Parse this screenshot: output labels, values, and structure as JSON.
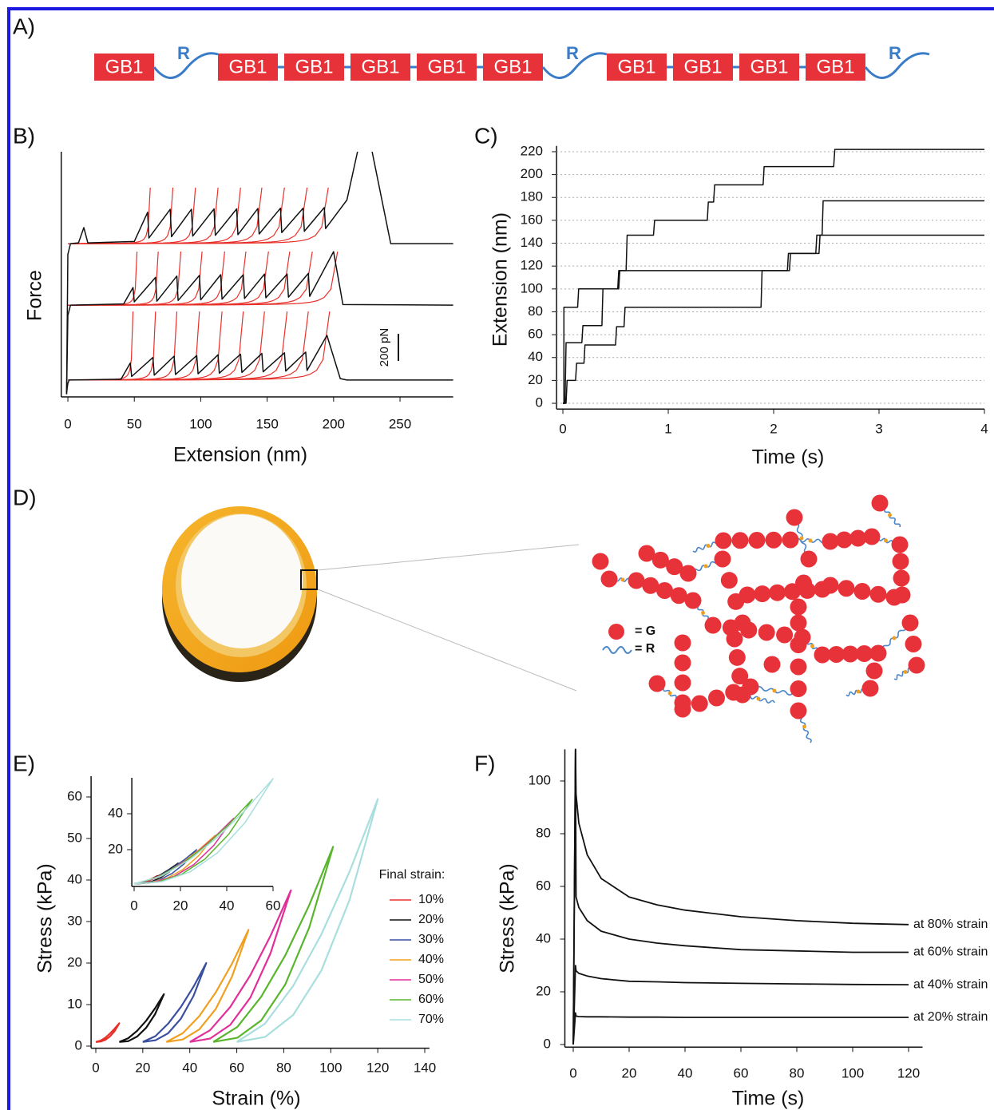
{
  "panel_labels": [
    "A)",
    "B)",
    "C)",
    "D)",
    "E)",
    "F)"
  ],
  "construct": {
    "modules": [
      "GB1",
      "R",
      "GB1",
      "GB1",
      "GB1",
      "GB1",
      "GB1",
      "R",
      "GB1",
      "GB1",
      "GB1",
      "GB1",
      "R"
    ]
  },
  "network_legend": [
    "= G",
    "= R"
  ],
  "chart_data": [
    {
      "type": "line",
      "xlabel": "Extension (nm)",
      "ylabel": "Force",
      "xlim": [
        -5,
        290
      ],
      "xticks": [
        0,
        50,
        100,
        150,
        200,
        250
      ],
      "ylim": [
        0,
        1806
      ],
      "scale_bar": {
        "value": 200,
        "label": "200 pN"
      },
      "series": [
        {
          "color": "#111111",
          "x": [
            -1,
            0,
            1,
            40,
            47,
            48,
            64,
            65,
            80,
            81,
            97,
            98,
            113,
            114,
            130,
            131,
            146,
            147,
            163,
            164,
            179,
            180,
            195,
            205,
            210,
            290
          ],
          "values": [
            30,
            100,
            124,
            130,
            250,
            150,
            290,
            160,
            300,
            165,
            305,
            170,
            310,
            175,
            315,
            180,
            320,
            185,
            325,
            190,
            330,
            195,
            453,
            135,
            124,
            124
          ],
          "fits": {
            "color": "#e8302a",
            "ends": [
              49,
              66,
              82,
              99,
              116,
              132,
              148,
              165,
              181,
              197
            ],
            "end_force": 629
          }
        },
        {
          "color": "#111111",
          "x": [
            -1,
            0,
            2,
            42,
            49,
            50,
            66,
            67,
            82,
            83,
            99,
            100,
            115,
            116,
            132,
            133,
            148,
            149,
            165,
            166,
            181,
            182,
            200,
            207,
            290
          ],
          "values": [
            20,
            600,
            676,
            685,
            806,
            700,
            880,
            705,
            890,
            710,
            895,
            715,
            900,
            720,
            900,
            725,
            905,
            730,
            905,
            735,
            910,
            740,
            1070,
            680,
            676
          ],
          "fits": {
            "color": "#e8302a",
            "ends": [
              52,
              68,
              85,
              101,
              118,
              134,
              151,
              167,
              184,
              203
            ],
            "end_force": 1070
          }
        },
        {
          "color": "#111111",
          "x": [
            -1,
            0,
            2,
            8,
            12,
            15,
            50,
            60,
            61,
            77,
            78,
            93,
            94,
            110,
            111,
            127,
            128,
            143,
            144,
            160,
            161,
            177,
            178,
            193,
            194,
            210,
            218,
            223,
            229,
            243,
            290
          ],
          "values": [
            20,
            1050,
            1129,
            1135,
            1247,
            1135,
            1145,
            1360,
            1170,
            1382,
            1180,
            1382,
            1185,
            1385,
            1190,
            1385,
            1195,
            1388,
            1200,
            1390,
            1210,
            1390,
            1220,
            1395,
            1240,
            1450,
            1806,
            null,
            1806,
            1129,
            1129
          ],
          "fits": {
            "color": "#e8302a",
            "ends": [
              62,
              79,
              96,
              113,
              130,
              146,
              163,
              180,
              196
            ],
            "end_force": 1541
          }
        }
      ]
    },
    {
      "type": "line",
      "xlabel": "Time (s)",
      "ylabel": "Extension (nm)",
      "grid": true,
      "xlim": [
        -0.06,
        4
      ],
      "xticks": [
        0,
        1,
        2,
        3,
        4
      ],
      "ylim": [
        -5,
        225
      ],
      "yticks": [
        0,
        20,
        40,
        60,
        80,
        100,
        120,
        140,
        160,
        180,
        200,
        220
      ],
      "series": [
        {
          "color": "#111111",
          "x": [
            0,
            0.01,
            0.01,
            0.14,
            0.15,
            0.52,
            0.53,
            0.6,
            0.61,
            0.86,
            0.87,
            1.37,
            1.38,
            1.43,
            1.44,
            1.9,
            1.91,
            2.57,
            2.58,
            4
          ],
          "values": [
            0,
            0,
            84,
            84,
            100,
            100,
            116,
            116,
            147,
            147,
            160,
            160,
            176,
            176,
            191,
            191,
            207,
            207,
            222,
            222
          ]
        },
        {
          "color": "#111111",
          "x": [
            0,
            0.02,
            0.03,
            0.18,
            0.19,
            0.37,
            0.38,
            0.53,
            0.54,
            2.13,
            2.14,
            2.4,
            2.41,
            2.46,
            2.47,
            4
          ],
          "values": [
            0,
            0,
            53,
            53,
            68,
            68,
            100,
            100,
            116,
            116,
            131,
            131,
            147,
            147,
            177,
            177
          ]
        },
        {
          "color": "#111111",
          "x": [
            0,
            0.03,
            0.04,
            0.12,
            0.13,
            0.2,
            0.21,
            0.5,
            0.51,
            0.58,
            0.59,
            1.88,
            1.89,
            2.15,
            2.16,
            2.43,
            2.44,
            4
          ],
          "values": [
            0,
            0,
            20,
            20,
            35,
            35,
            51,
            51,
            67,
            67,
            84,
            84,
            116,
            116,
            131,
            131,
            147,
            147
          ]
        }
      ]
    },
    {
      "type": "line",
      "xlabel": "Strain (%)",
      "ylabel": "Stress (kPa)",
      "legend_title": "Final strain:",
      "xlim": [
        -2,
        142
      ],
      "xticks": [
        0,
        20,
        40,
        60,
        80,
        100,
        120,
        140
      ],
      "ylim": [
        -0.5,
        65
      ],
      "yticks": [
        0,
        10,
        20,
        30,
        40,
        50,
        60
      ],
      "series": [
        {
          "name": "10%",
          "color": "#e8302a",
          "x": [
            0,
            2,
            4,
            6,
            8,
            10,
            8,
            6,
            4,
            2,
            0
          ],
          "values": [
            1,
            1.3,
            2,
            3,
            4.2,
            5.5,
            3.6,
            2.3,
            1.5,
            1.1,
            1
          ]
        },
        {
          "name": "20%",
          "color": "#111111",
          "x": [
            10,
            13.8,
            17.6,
            21.4,
            25.2,
            29,
            25.2,
            21.4,
            17.6,
            13.8,
            10
          ],
          "values": [
            1,
            1.9,
            3.7,
            6.1,
            9.1,
            12.5,
            7.7,
            4.4,
            2.3,
            1.2,
            1
          ]
        },
        {
          "name": "30%",
          "color": "#3a4fa0",
          "x": [
            20,
            25.4,
            30.8,
            36.2,
            41.6,
            47,
            41.6,
            36.2,
            30.8,
            25.4,
            20
          ],
          "values": [
            1,
            2.4,
            5.4,
            9.4,
            14.3,
            20,
            12.1,
            6.6,
            3.1,
            1.4,
            1
          ]
        },
        {
          "name": "40%",
          "color": "#f0a020",
          "x": [
            30,
            37,
            44,
            51,
            58,
            65,
            58,
            51,
            44,
            37,
            30
          ],
          "values": [
            1,
            3.1,
            7.2,
            12.9,
            19.9,
            28,
            16.8,
            8.9,
            4,
            1.6,
            1
          ]
        },
        {
          "name": "50%",
          "color": "#e0309a",
          "x": [
            40,
            48.6,
            57.2,
            65.8,
            74.4,
            83,
            74.4,
            65.8,
            57.2,
            48.6,
            40
          ],
          "values": [
            1,
            3.8,
            9.4,
            17.1,
            26.6,
            37.5,
            22.4,
            11.7,
            5.1,
            1.8,
            1
          ]
        },
        {
          "name": "60%",
          "color": "#5ab52e",
          "x": [
            50,
            60.2,
            70.4,
            80.6,
            90.8,
            101,
            90.8,
            80.6,
            70.4,
            60.2,
            50
          ],
          "values": [
            1,
            4.6,
            11.9,
            21.8,
            33.9,
            48,
            28.5,
            14.8,
            6.2,
            2,
            1
          ]
        },
        {
          "name": "70%",
          "color": "#a8dedd",
          "x": [
            60,
            72,
            84,
            96,
            108,
            120,
            108,
            96,
            84,
            72,
            60
          ],
          "values": [
            1,
            5.4,
            14.5,
            26.9,
            42,
            59.5,
            35.2,
            18.2,
            7.5,
            2.2,
            1
          ]
        }
      ]
    },
    {
      "type": "line",
      "xlim": [
        -1,
        60
      ],
      "xticks": [
        0,
        20,
        40,
        60
      ],
      "ylim": [
        -0.5,
        60
      ],
      "yticks": [
        20,
        40
      ],
      "series": [
        {
          "color": "#e8302a",
          "x": [
            0,
            2,
            4,
            6,
            8,
            10,
            8,
            6,
            4,
            2,
            0
          ],
          "values": [
            1,
            1.3,
            2,
            3,
            4.2,
            5.5,
            3.6,
            2.3,
            1.5,
            1.1,
            1
          ]
        },
        {
          "color": "#111111",
          "x": [
            0,
            3.8,
            7.6,
            11.4,
            15.2,
            19,
            15.2,
            11.4,
            7.6,
            3.8,
            0
          ],
          "values": [
            1,
            1.9,
            3.7,
            6.1,
            9.1,
            12.5,
            7.7,
            4.4,
            2.3,
            1.2,
            1
          ]
        },
        {
          "color": "#3a4fa0",
          "x": [
            0,
            5.4,
            10.8,
            16.2,
            21.6,
            27,
            21.6,
            16.2,
            10.8,
            5.4,
            0
          ],
          "values": [
            1,
            2.4,
            5.4,
            9.4,
            14.3,
            20,
            12.1,
            6.6,
            3.1,
            1.4,
            1
          ]
        },
        {
          "color": "#f0a020",
          "x": [
            0,
            7,
            14,
            21,
            28,
            35,
            28,
            21,
            14,
            7,
            0
          ],
          "values": [
            1,
            3.1,
            7.2,
            12.9,
            19.9,
            28,
            16.8,
            8.9,
            4,
            1.6,
            1
          ]
        },
        {
          "color": "#e0309a",
          "x": [
            0,
            8.6,
            17.2,
            25.8,
            34.4,
            43,
            34.4,
            25.8,
            17.2,
            8.6,
            0
          ],
          "values": [
            1,
            3.8,
            9.4,
            17.1,
            26.6,
            37.5,
            22.4,
            11.7,
            5.1,
            1.8,
            1
          ]
        },
        {
          "color": "#5ab52e",
          "x": [
            0,
            10.2,
            20.4,
            30.6,
            40.8,
            51,
            40.8,
            30.6,
            20.4,
            10.2,
            0
          ],
          "values": [
            1,
            4.6,
            11.9,
            21.8,
            33.9,
            48,
            28.5,
            14.8,
            6.2,
            2,
            1
          ]
        },
        {
          "color": "#a8dedd",
          "x": [
            0,
            12,
            24,
            36,
            48,
            60,
            48,
            36,
            24,
            12,
            0
          ],
          "values": [
            1,
            5.4,
            14.5,
            26.9,
            42,
            59.5,
            35.2,
            18.2,
            7.5,
            2.2,
            1
          ]
        }
      ]
    },
    {
      "type": "line",
      "xlabel": "Time (s)",
      "ylabel": "Stress (kPa)",
      "xlim": [
        -3,
        125
      ],
      "xticks": [
        0,
        20,
        40,
        60,
        80,
        100,
        120
      ],
      "ylim": [
        -1,
        112
      ],
      "yticks": [
        0,
        20,
        40,
        60,
        80,
        100
      ],
      "x": [
        0,
        0.8,
        1,
        2,
        5,
        10,
        20,
        30,
        40,
        60,
        80,
        100,
        120
      ],
      "series": [
        {
          "name": "at 80% strain",
          "color": "#111111",
          "values": [
            0,
            112,
            95,
            84,
            72,
            63,
            56,
            53,
            51,
            48.5,
            47,
            46,
            45.5
          ]
        },
        {
          "name": "at 60% strain",
          "color": "#111111",
          "values": [
            0,
            112,
            56,
            52,
            47,
            43,
            40,
            38.5,
            37.5,
            36,
            35.5,
            35,
            35
          ]
        },
        {
          "name": "at 40% strain",
          "color": "#111111",
          "values": [
            0,
            30,
            28,
            27,
            26,
            25,
            24,
            23.8,
            23.5,
            23.2,
            23,
            22.8,
            22.7
          ]
        },
        {
          "name": "at 20% strain",
          "color": "#111111",
          "values": [
            0,
            12,
            10.8,
            10.6,
            10.5,
            10.5,
            10.4,
            10.4,
            10.3,
            10.3,
            10.3,
            10.3,
            10.3
          ]
        }
      ]
    }
  ]
}
